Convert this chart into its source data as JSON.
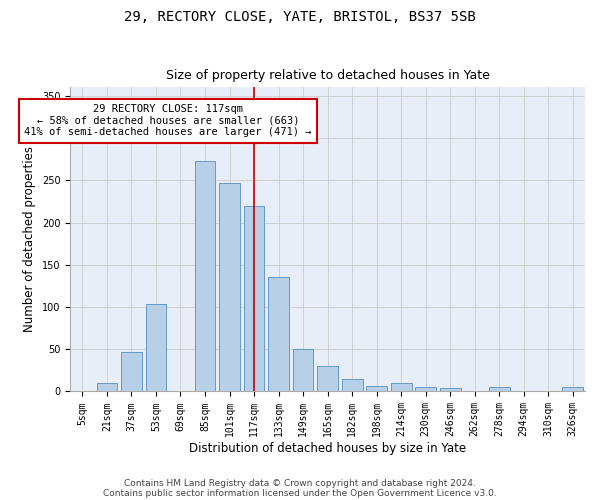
{
  "title1": "29, RECTORY CLOSE, YATE, BRISTOL, BS37 5SB",
  "title2": "Size of property relative to detached houses in Yate",
  "xlabel": "Distribution of detached houses by size in Yate",
  "ylabel": "Number of detached properties",
  "categories": [
    "5sqm",
    "21sqm",
    "37sqm",
    "53sqm",
    "69sqm",
    "85sqm",
    "101sqm",
    "117sqm",
    "133sqm",
    "149sqm",
    "165sqm",
    "182sqm",
    "198sqm",
    "214sqm",
    "230sqm",
    "246sqm",
    "262sqm",
    "278sqm",
    "294sqm",
    "310sqm",
    "326sqm"
  ],
  "values": [
    0,
    10,
    47,
    103,
    0,
    273,
    247,
    220,
    135,
    50,
    30,
    15,
    7,
    10,
    5,
    4,
    0,
    5,
    0,
    0,
    5
  ],
  "bar_color": "#b8cfe8",
  "bar_edge_color": "#6699cc",
  "bar_width": 0.85,
  "vline_x_index": 7,
  "vline_color": "#cc0000",
  "annotation_text": "29 RECTORY CLOSE: 117sqm\n← 58% of detached houses are smaller (663)\n41% of semi-detached houses are larger (471) →",
  "annotation_box_color": "#ffffff",
  "annotation_box_edge_color": "#cc0000",
  "ylim": [
    0,
    360
  ],
  "yticks": [
    0,
    50,
    100,
    150,
    200,
    250,
    300,
    350
  ],
  "grid_color": "#cccccc",
  "bg_color": "#e8eef7",
  "footer1": "Contains HM Land Registry data © Crown copyright and database right 2024.",
  "footer2": "Contains public sector information licensed under the Open Government Licence v3.0.",
  "title_fontsize": 10,
  "subtitle_fontsize": 9,
  "axis_label_fontsize": 8.5,
  "tick_fontsize": 7,
  "annotation_fontsize": 7.5,
  "footer_fontsize": 6.5
}
